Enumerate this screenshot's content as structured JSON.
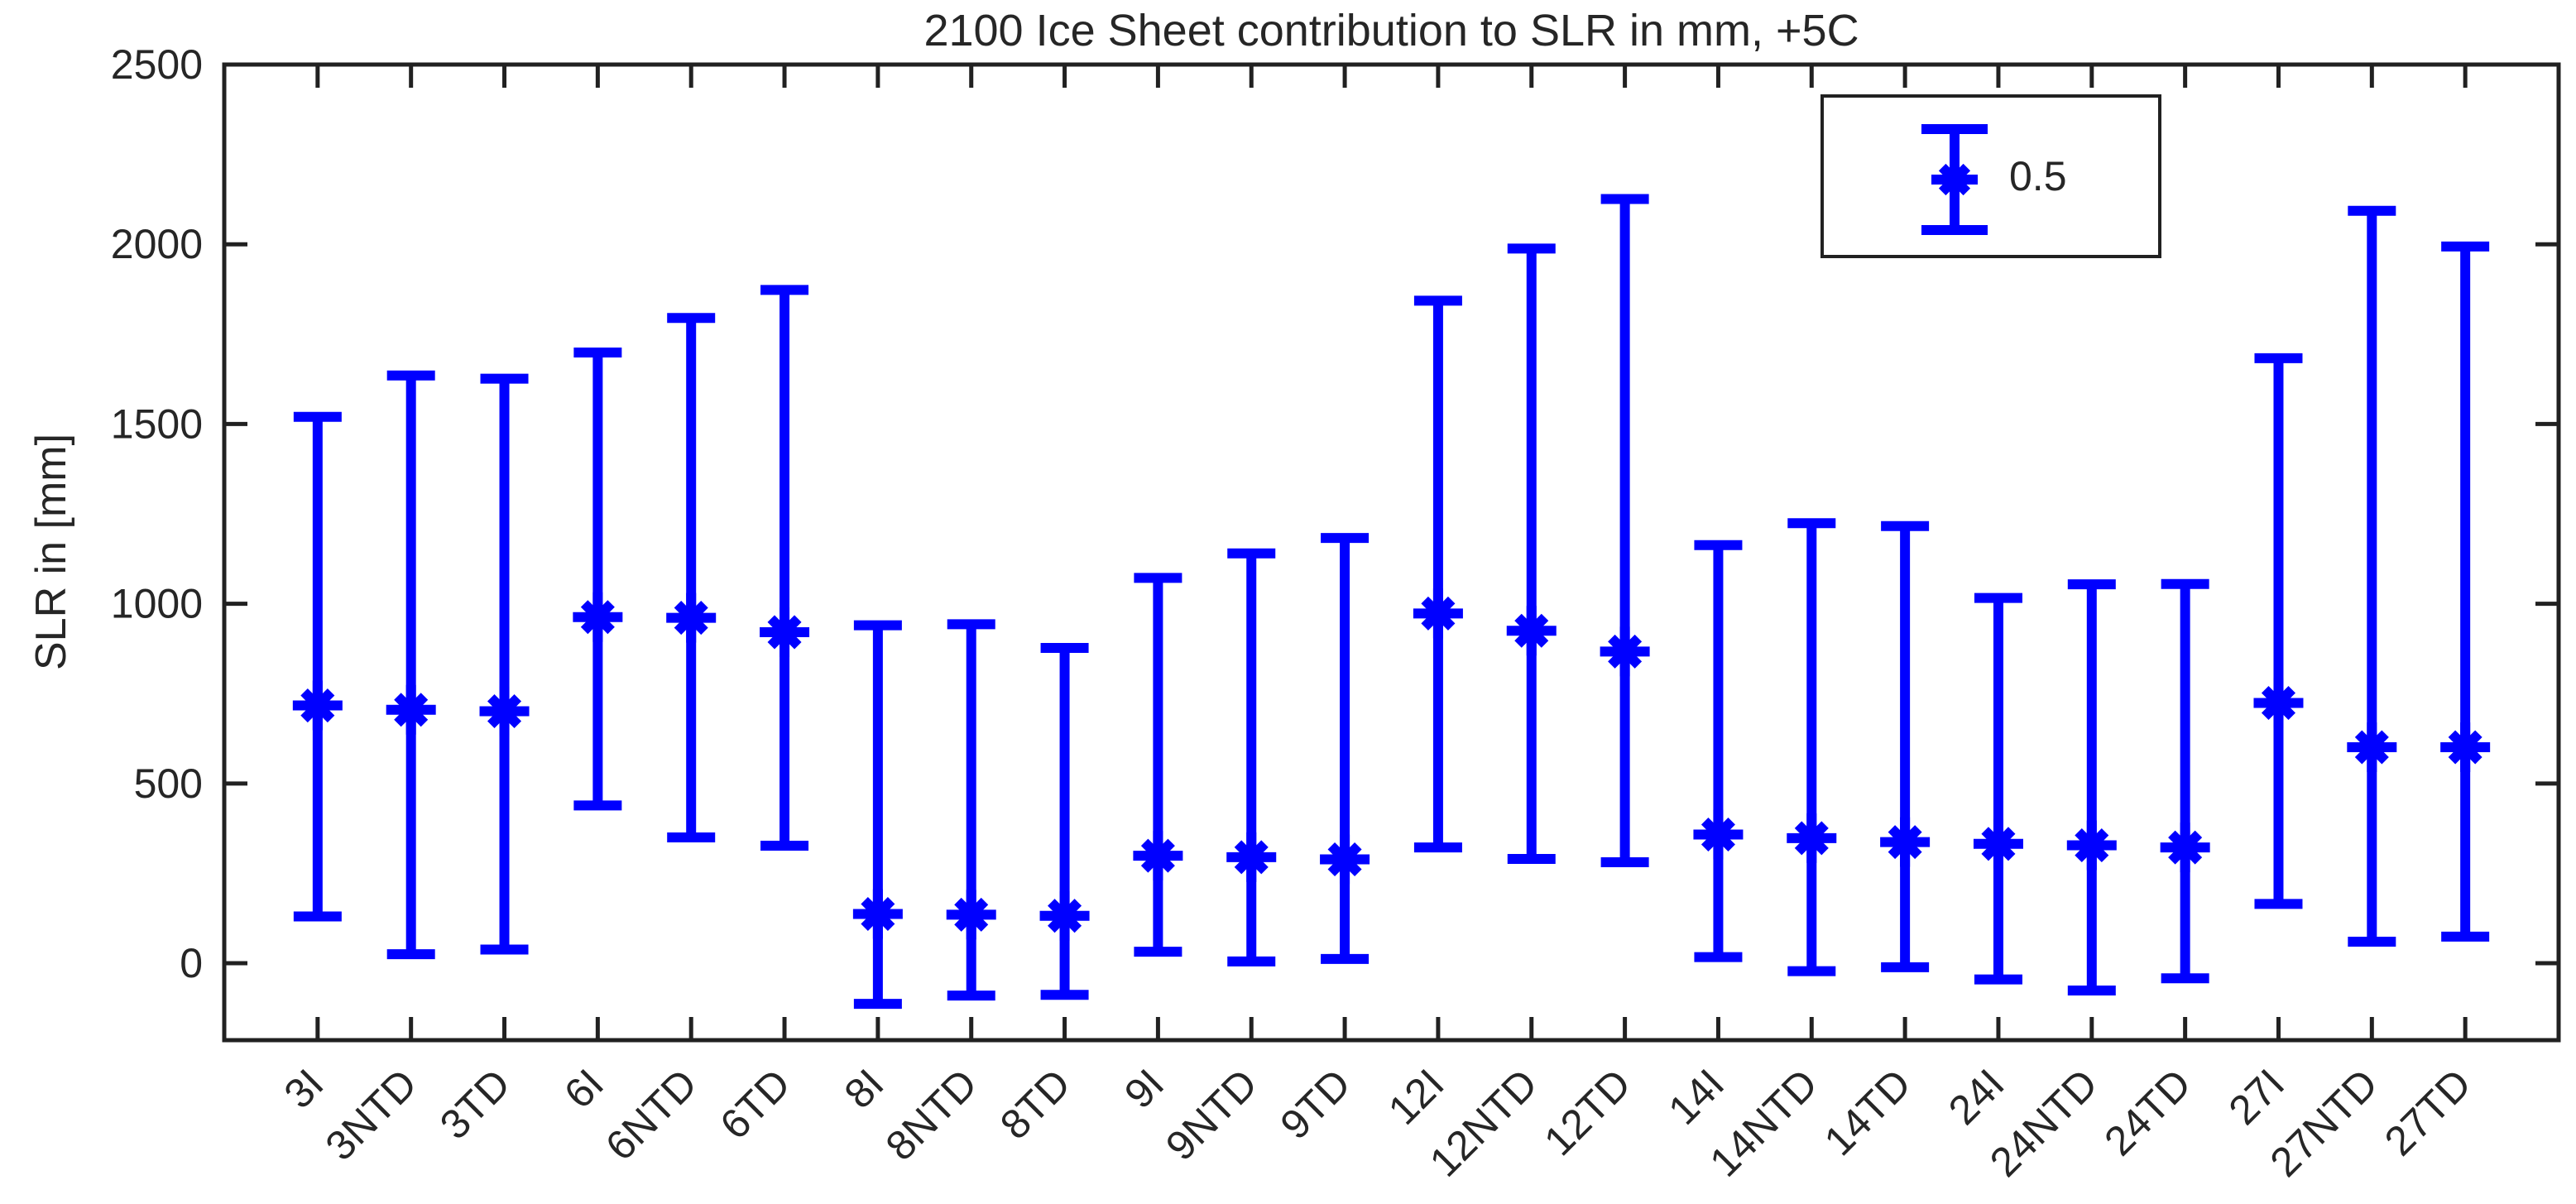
{
  "title": "2100 Ice Sheet contribution to SLR in mm, +5C",
  "y_axis_label": "SLR in [mm]",
  "legend": {
    "label": "0.5",
    "marker": "asterisk-errorbar-icon"
  },
  "colors": {
    "series": "#0000ff",
    "axis": "#212121",
    "text": "#262626",
    "background": "#ffffff"
  },
  "chart_data": {
    "type": "errorbar",
    "title": "2100 Ice Sheet contribution to SLR in mm, +5C",
    "ylabel": "SLR in [mm]",
    "xlabel": "",
    "categories": [
      "3I",
      "3NTD",
      "3TD",
      "6I",
      "6NTD",
      "6TD",
      "8I",
      "8NTD",
      "8TD",
      "9I",
      "9NTD",
      "9TD",
      "12I",
      "12NTD",
      "12TD",
      "14I",
      "14NTD",
      "14TD",
      "24I",
      "24NTD",
      "24TD",
      "27I",
      "27NTD",
      "27TD"
    ],
    "series": [
      {
        "name": "0.5",
        "center": [
          717,
          705,
          701,
          963,
          961,
          921,
          137,
          135,
          132,
          299,
          295,
          289,
          973,
          925,
          867,
          358,
          348,
          337,
          332,
          328,
          322,
          724,
          601,
          601
        ],
        "upper": [
          1520,
          1635,
          1626,
          1699,
          1795,
          1873,
          940,
          943,
          877,
          1072,
          1140,
          1183,
          1843,
          1988,
          2126,
          1163,
          1224,
          1216,
          1016,
          1054,
          1055,
          1683,
          2093,
          1994
        ],
        "lower": [
          130,
          25,
          38,
          439,
          350,
          327,
          -113,
          -90,
          -88,
          32,
          5,
          12,
          322,
          290,
          281,
          17,
          -22,
          -11,
          -45,
          -76,
          -42,
          165,
          60,
          74
        ]
      }
    ],
    "ylim": [
      -214,
      2500
    ],
    "yticks": [
      0,
      500,
      1000,
      1500,
      2000,
      2500
    ],
    "xtick_angle": 45,
    "grid": false,
    "box": true,
    "legend_position": "top-right"
  }
}
